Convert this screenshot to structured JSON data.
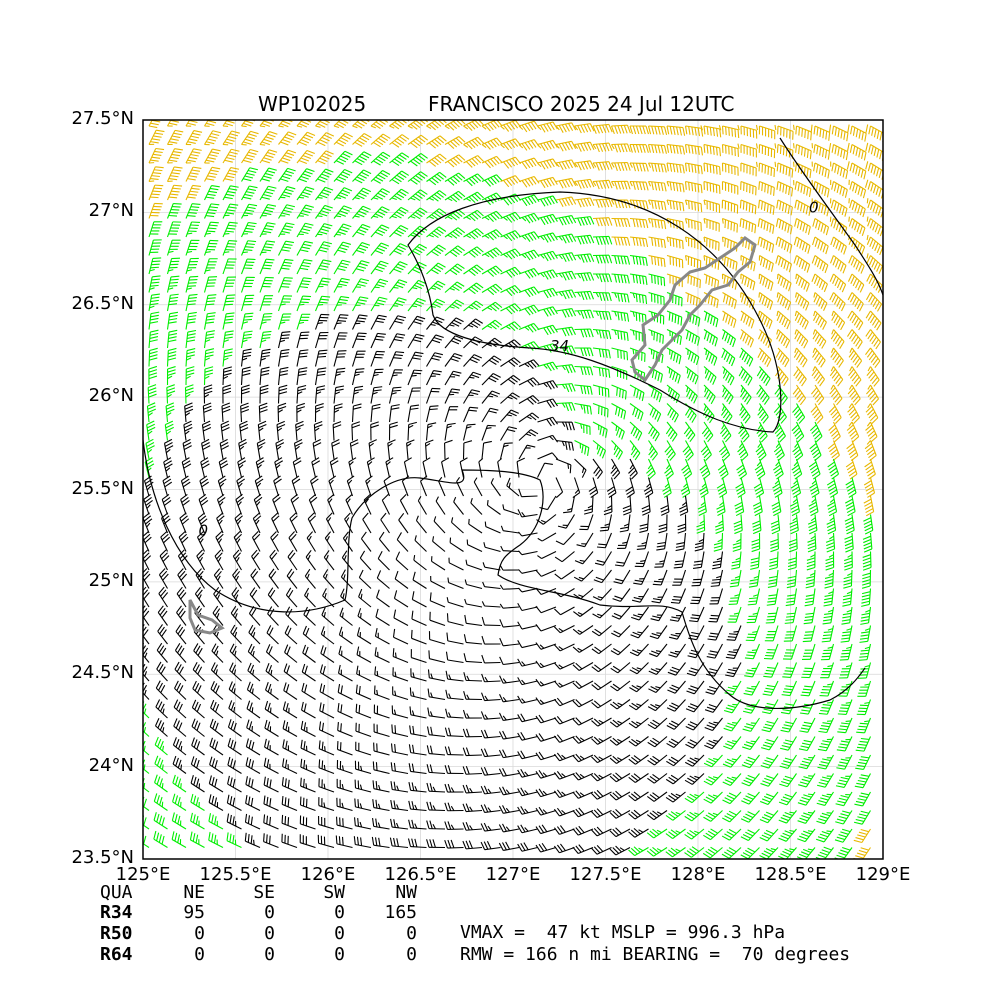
{
  "title": {
    "storm_id": "WP102025",
    "storm_info": "FRANCISCO 2025 24 Jul 12UTC"
  },
  "axes": {
    "lon_range": [
      125.0,
      129.0
    ],
    "lat_range": [
      23.5,
      27.5
    ],
    "x_ticks": [
      {
        "value": 125.0,
        "label": "125°E"
      },
      {
        "value": 125.5,
        "label": "125.5°E"
      },
      {
        "value": 126.0,
        "label": "126°E"
      },
      {
        "value": 126.5,
        "label": "126.5°E"
      },
      {
        "value": 127.0,
        "label": "127°E"
      },
      {
        "value": 127.5,
        "label": "127.5°E"
      },
      {
        "value": 128.0,
        "label": "128°E"
      },
      {
        "value": 128.5,
        "label": "128.5°E"
      },
      {
        "value": 129.0,
        "label": "129°E"
      }
    ],
    "y_ticks": [
      {
        "value": 27.5,
        "label": "27.5°N"
      },
      {
        "value": 27.0,
        "label": "27°N"
      },
      {
        "value": 26.5,
        "label": "26.5°N"
      },
      {
        "value": 26.0,
        "label": "26°N"
      },
      {
        "value": 25.5,
        "label": "25.5°N"
      },
      {
        "value": 25.0,
        "label": "25°N"
      },
      {
        "value": 24.5,
        "label": "24.5°N"
      },
      {
        "value": 24.0,
        "label": "24°N"
      },
      {
        "value": 23.5,
        "label": "23.5°N"
      }
    ],
    "grid": true
  },
  "wind_field": {
    "center": [
      127.15,
      25.55
    ],
    "max_wind_kt": 47,
    "rmw_nmi": 166,
    "colors": {
      "below_34": "#000000",
      "r34": "#00ee00",
      "r50": "#e8b800"
    }
  },
  "contour_labels": [
    {
      "text": "34",
      "lon": 127.2,
      "lat": 26.25
    },
    {
      "text": "0",
      "lon": 125.3,
      "lat": 25.25
    },
    {
      "text": "0",
      "lon": 128.6,
      "lat": 27.0
    }
  ],
  "radii_table": {
    "header": [
      "QUA",
      "NE",
      "SE",
      "SW",
      "NW"
    ],
    "rows": [
      {
        "label": "R34",
        "values": [
          "95",
          "0",
          "0",
          "165"
        ]
      },
      {
        "label": "R50",
        "values": [
          "0",
          "0",
          "0",
          "0"
        ]
      },
      {
        "label": "R64",
        "values": [
          "0",
          "0",
          "0",
          "0"
        ]
      }
    ]
  },
  "summary": {
    "line1": "VMAX =  47 kt MSLP = 996.3 hPa",
    "line2": "RMW = 166 n mi BEARING =  70 degrees"
  }
}
